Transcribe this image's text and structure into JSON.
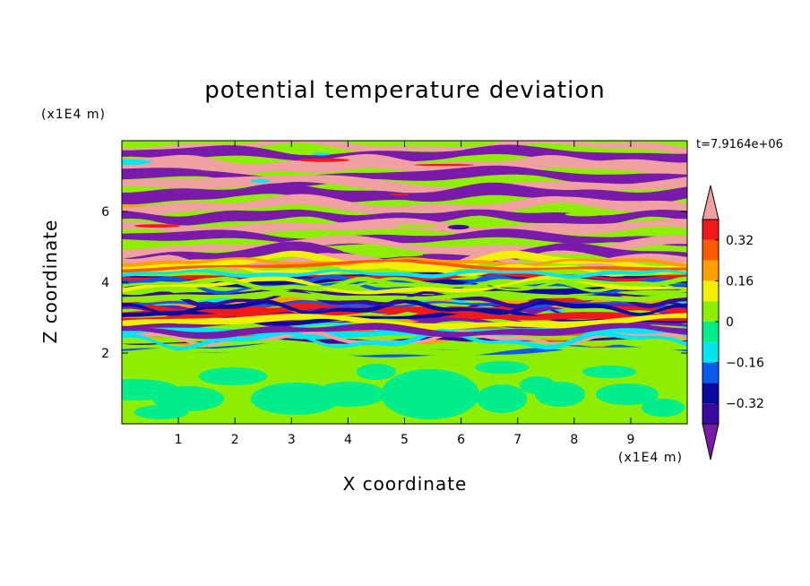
{
  "chart_data": {
    "type": "heatmap",
    "title": "potential temperature deviation",
    "xlabel": "X coordinate",
    "ylabel": "Z coordinate",
    "x_units": "(x1E4 m)",
    "y_units": "(x1E4 m)",
    "timestamp": "t=7.9164e+06",
    "xlim": [
      0,
      10
    ],
    "ylim": [
      0,
      8
    ],
    "x_ticks": [
      1,
      2,
      3,
      4,
      5,
      6,
      7,
      8,
      9
    ],
    "x_tick_labels": [
      "1",
      "2",
      "3",
      "4",
      "5",
      "6",
      "7",
      "8",
      "9"
    ],
    "y_ticks": [
      2,
      4,
      6
    ],
    "y_tick_labels": [
      "2",
      "4",
      "6"
    ],
    "colorbar": {
      "levels": [
        -0.4,
        -0.32,
        -0.24,
        -0.16,
        -0.08,
        0,
        0.08,
        0.16,
        0.24,
        0.32,
        0.4
      ],
      "tick_values": [
        -0.32,
        -0.16,
        0,
        0.16,
        0.32
      ],
      "tick_labels": [
        "−0.32",
        "−0.16",
        "0",
        "0.16",
        "0.32"
      ],
      "colors": [
        "#7a1aaa",
        "#3a0aa0",
        "#0a0aa0",
        "#0a5aee",
        "#00e6f0",
        "#00ee8a",
        "#8eee00",
        "#f0f000",
        "#ffa000",
        "#ff5a00",
        "#ee1a1a",
        "#f0a0a0"
      ],
      "extend": "both"
    },
    "field_summary": {
      "lower_layer_z_below": 2,
      "lower_layer_values": [
        0,
        0.08
      ],
      "upper_layer_banded_range": [
        -0.4,
        0.4
      ]
    }
  }
}
